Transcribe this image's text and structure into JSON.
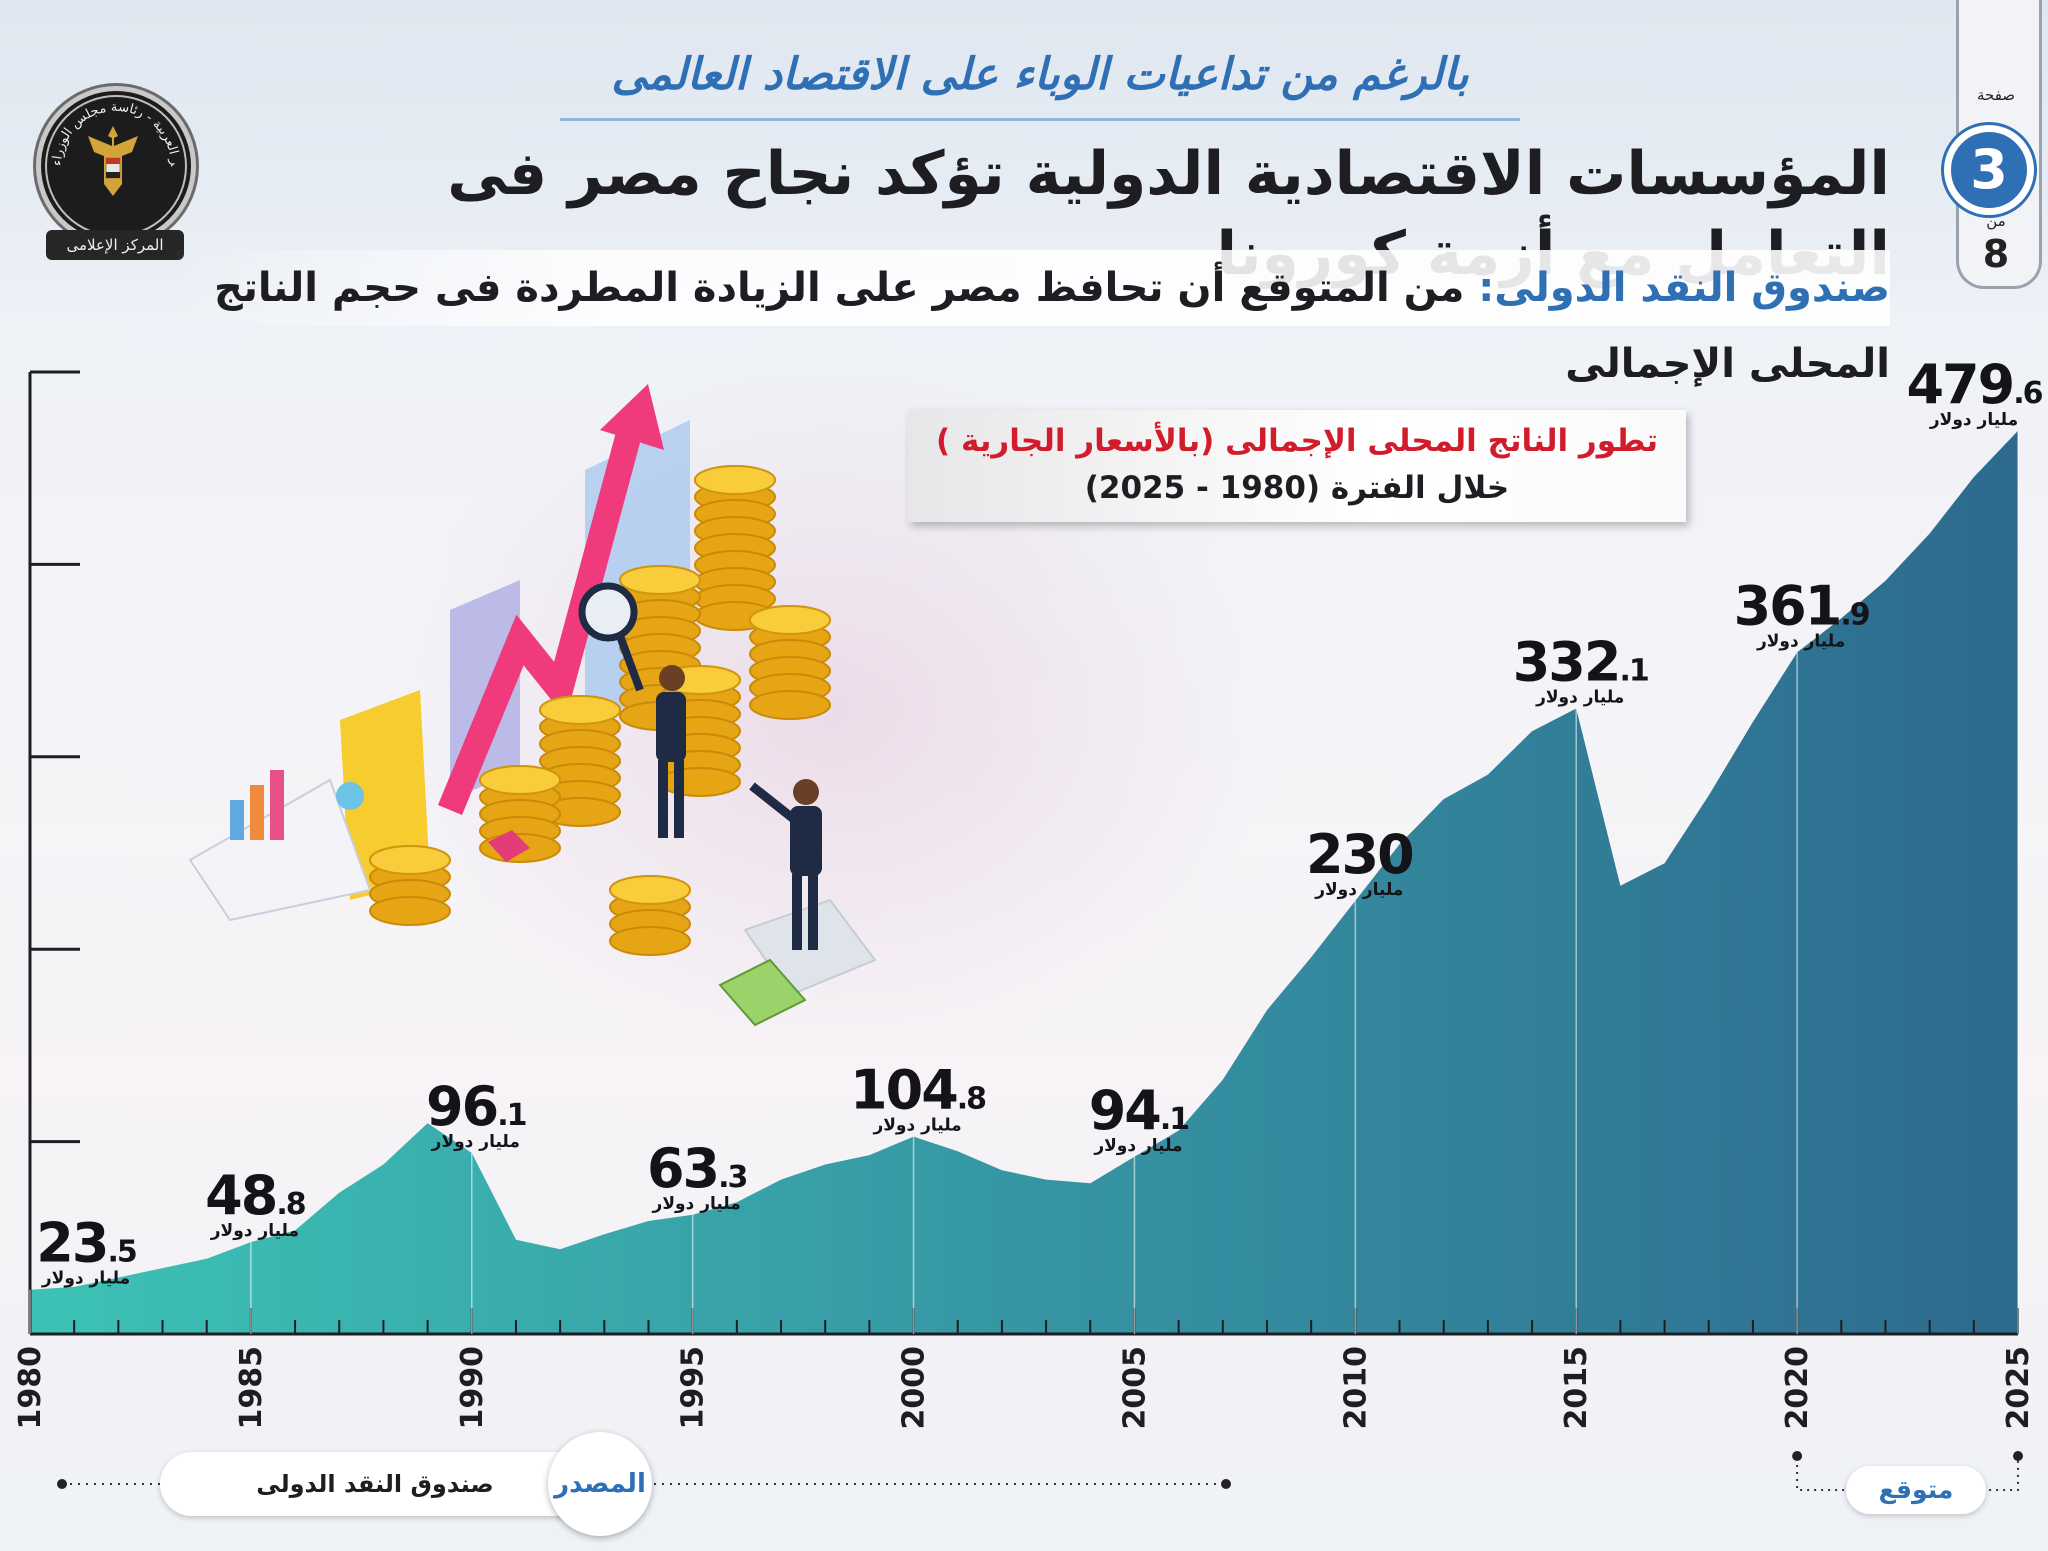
{
  "header": {
    "kicker": "بالرغم من تداعيات الوباء على الاقتصاد العالمى",
    "headline": "المؤسسات الاقتصادية الدولية تؤكد نجاح مصر فى التعامل مع أزمة كورونا",
    "subhead_source": "صندوق النقد الدولى:",
    "subhead_text": " من المتوقع أن تحافظ مصر على الزيادة المطردة فى حجم الناتج المحلى الإجمالى"
  },
  "logo": {
    "ring_text": "جمهورية مصر العربية - رئاسة مجلس الوزراء",
    "ribbon": "المركز الإعلامى",
    "icon": "eagle-emblem-icon"
  },
  "page": {
    "label_page": "صفحة",
    "current": "3",
    "label_of": "من",
    "total": "8"
  },
  "chart_title": {
    "line1": "تطور الناتج المحلى الإجمالى (بالأسعار الجارية )",
    "line2": "خلال الفترة (1980 - 2025)"
  },
  "footer": {
    "source_label": "المصدر",
    "source_name": "صندوق النقد الدولى",
    "forecast_label": "متوقع"
  },
  "chart_data": {
    "type": "area",
    "title": "تطور الناتج المحلى الإجمالى (بالأسعار الجارية ) خلال الفترة (1980 - 2025)",
    "x": [
      1980,
      1981,
      1982,
      1983,
      1984,
      1985,
      1986,
      1987,
      1988,
      1989,
      1990,
      1991,
      1992,
      1993,
      1994,
      1995,
      1996,
      1997,
      1998,
      1999,
      2000,
      2001,
      2002,
      2003,
      2004,
      2005,
      2006,
      2007,
      2008,
      2009,
      2010,
      2011,
      2012,
      2013,
      2014,
      2015,
      2016,
      2017,
      2018,
      2019,
      2020,
      2021,
      2022,
      2023,
      2024,
      2025
    ],
    "values": [
      23.5,
      25,
      30,
      35,
      40,
      48.8,
      55,
      75,
      90,
      112,
      96.1,
      50,
      45,
      53,
      60,
      63.3,
      70,
      82,
      90,
      95,
      104.8,
      97,
      87,
      82,
      80,
      94.1,
      108,
      135,
      172,
      200,
      230,
      260,
      284,
      297,
      320,
      332.1,
      238,
      250,
      286,
      325,
      361.9,
      380,
      400,
      425,
      455,
      479.6
    ],
    "labeled_points": [
      {
        "year": 1980,
        "whole": "23",
        "decimal": ".5",
        "unit": "مليار دولار"
      },
      {
        "year": 1985,
        "whole": "48",
        "decimal": ".8",
        "unit": "مليار دولار"
      },
      {
        "year": 1990,
        "whole": "96",
        "decimal": ".1",
        "unit": "مليار دولار"
      },
      {
        "year": 1995,
        "whole": "63",
        "decimal": ".3",
        "unit": "مليار دولار"
      },
      {
        "year": 2000,
        "whole": "104",
        "decimal": ".8",
        "unit": "مليار دولار"
      },
      {
        "year": 2005,
        "whole": "94",
        "decimal": ".1",
        "unit": "مليار دولار"
      },
      {
        "year": 2010,
        "whole": "230",
        "decimal": "",
        "unit": "مليار دولار"
      },
      {
        "year": 2015,
        "whole": "332",
        "decimal": ".1",
        "unit": "مليار دولار"
      },
      {
        "year": 2020,
        "whole": "361",
        "decimal": ".9",
        "unit": "مليار دولار"
      },
      {
        "year": 2025,
        "whole": "479",
        "decimal": ".6",
        "unit": "مليار دولار"
      }
    ],
    "tick_labels": [
      "1980",
      "1985",
      "1990",
      "1995",
      "2000",
      "2005",
      "2010",
      "2015",
      "2020",
      "2025"
    ],
    "forecast_range": [
      2020,
      2025
    ],
    "ylim": [
      0,
      500
    ],
    "grid": false,
    "colors": {
      "start": "#3cc2b5",
      "end": "#2d6a8e"
    }
  }
}
